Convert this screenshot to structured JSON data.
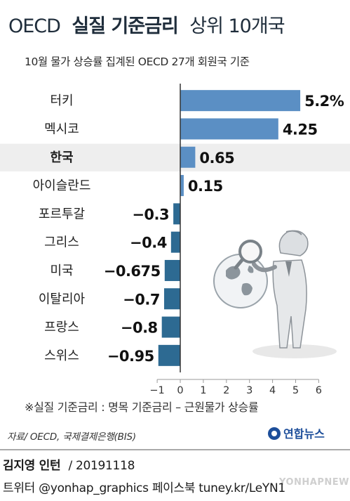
{
  "chart_data": {
    "type": "bar",
    "orientation": "horizontal",
    "title_strong": "실질 기준금리",
    "title_prefix": "OECD",
    "title_suffix": "상위 10개국",
    "subtitle": "10월 물가 상승률 집계된 OECD 27개 회원국 기준",
    "categories": [
      "터키",
      "멕시코",
      "한국",
      "아이슬란드",
      "포르투갈",
      "그리스",
      "미국",
      "이탈리아",
      "프랑스",
      "스위스"
    ],
    "values": [
      5.2,
      4.25,
      0.65,
      0.15,
      -0.3,
      -0.4,
      -0.675,
      -0.7,
      -0.8,
      -0.95
    ],
    "value_labels": [
      "5.2%",
      "4.25",
      "0.65",
      "0.15",
      "−0.3",
      "−0.4",
      "−0.675",
      "−0.7",
      "−0.8",
      "−0.95"
    ],
    "highlight": "한국",
    "xlim": [
      -1,
      6
    ],
    "xticks": [
      "−1",
      "0",
      "1",
      "2",
      "3",
      "4",
      "5",
      "6"
    ],
    "colors": {
      "positive": "#5b8fc4",
      "negative": "#2d6a92",
      "highlight_band": "#eeeeee",
      "axis": "#333333"
    }
  },
  "note": "※실질 기준금리 : 명목 기준금리 – 근원물가 상승률",
  "source": "자료/ OECD, 국제결제은행(BIS)",
  "brand": "연합뉴스",
  "credit": {
    "author": "김지영 인턴",
    "date": "/ 20191118",
    "line2": "트위터 @yonhap_graphics  페이스북 tuney.kr/LeYN1"
  },
  "watermark": "YONHAPNEWS",
  "icons": [
    "person-with-magnifier-globe-illustration",
    "yonhap-logo-icon"
  ]
}
